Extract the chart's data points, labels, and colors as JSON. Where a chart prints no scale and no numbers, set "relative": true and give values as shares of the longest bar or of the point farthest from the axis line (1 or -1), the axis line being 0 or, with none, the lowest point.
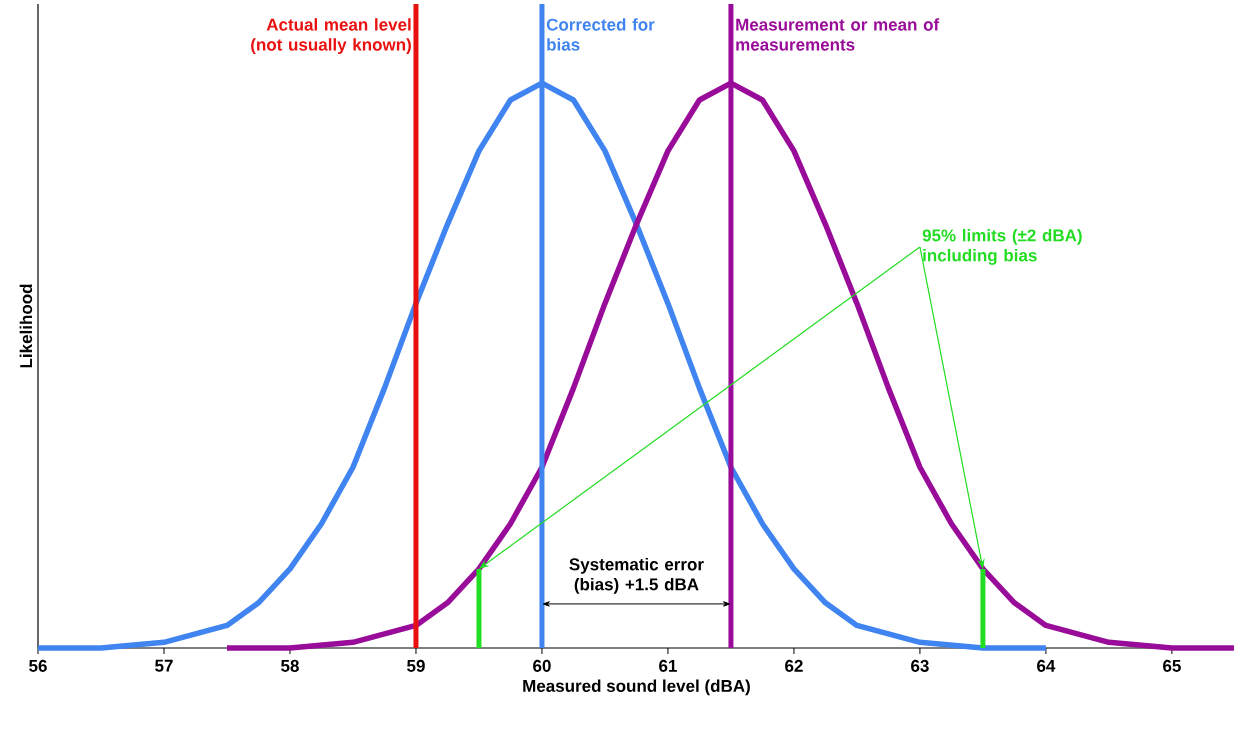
{
  "chart_data": {
    "type": "line",
    "relative": true,
    "xlabel": "Measured sound level (dBA)",
    "ylabel": "Likelihood",
    "xlim": [
      56,
      65.5
    ],
    "xticks": [
      56,
      57,
      58,
      59,
      60,
      61,
      62,
      63,
      64,
      65
    ],
    "marker": "none",
    "line_style": "solid",
    "series": [
      {
        "color": "#3f84f0",
        "x": [
          56,
          56.5,
          57,
          57.5,
          57.75,
          58,
          58.25,
          58.5,
          58.75,
          59,
          59.25,
          59.5,
          59.75,
          60,
          60.25,
          60.5,
          60.75,
          61,
          61.25,
          61.5,
          61.75,
          62,
          62.25,
          62.5,
          63,
          63.5,
          64
        ],
        "values": [
          0,
          0,
          0.01,
          0.04,
          0.08,
          0.14,
          0.22,
          0.32,
          0.46,
          0.61,
          0.75,
          0.88,
          0.97,
          1,
          0.97,
          0.88,
          0.75,
          0.61,
          0.46,
          0.32,
          0.22,
          0.14,
          0.08,
          0.04,
          0.01,
          0,
          0
        ]
      },
      {
        "color": "#990c99",
        "x": [
          57.5,
          58,
          58.5,
          59,
          59.25,
          59.5,
          59.75,
          60,
          60.25,
          60.5,
          60.75,
          61,
          61.25,
          61.5,
          61.75,
          62,
          62.25,
          62.5,
          62.75,
          63,
          63.25,
          63.5,
          63.75,
          64,
          64.5,
          65,
          65.5
        ],
        "values": [
          0,
          0,
          0.01,
          0.04,
          0.08,
          0.14,
          0.22,
          0.32,
          0.46,
          0.61,
          0.75,
          0.88,
          0.97,
          1,
          0.97,
          0.88,
          0.75,
          0.61,
          0.46,
          0.32,
          0.22,
          0.14,
          0.08,
          0.04,
          0.01,
          0,
          0
        ]
      },
      {
        "type": "bar",
        "color": "#22dd22",
        "x": [
          59.5,
          63.5
        ],
        "values": [
          0.14,
          0.14
        ]
      }
    ],
    "ref_lines": [
      {
        "axis": "x",
        "value": 59,
        "label": "Actual mean level (not usually known)",
        "color": "#e8110f"
      },
      {
        "axis": "x",
        "value": 60,
        "label": "Corrected for bias",
        "color": "#3f84f0"
      },
      {
        "axis": "x",
        "value": 61.5,
        "label": "Measurement or mean of measurements",
        "color": "#990c99"
      }
    ],
    "annotations": [
      "Systematic error (bias) +1.5 dBA",
      "95% limits (±2 dBA) including bias"
    ]
  }
}
